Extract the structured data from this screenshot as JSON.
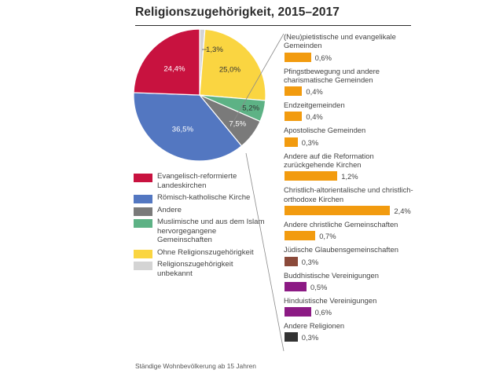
{
  "title": "Religionszugehörigkeit, 2015–2017",
  "footnote": "Ständige Wohnbevölkerung ab 15 Jahren",
  "chart_data": [
    {
      "type": "pie",
      "slices": [
        {
          "label": "Religionszugehörigkeit unbekannt",
          "value": 1.3,
          "value_label": "1,3%",
          "color": "#d4d4d4"
        },
        {
          "label": "Ohne Religionszugehörigkeit",
          "value": 25.0,
          "value_label": "25,0%",
          "color": "#fad541"
        },
        {
          "label": "Muslimische und aus dem Islam hervorgegangene Gemeinschaften",
          "value": 5.2,
          "value_label": "5,2%",
          "color": "#5db285"
        },
        {
          "label": "Andere",
          "value": 7.5,
          "value_label": "7,5%",
          "color": "#7a7a7a"
        },
        {
          "label": "Römisch-katholische Kirche",
          "value": 36.5,
          "value_label": "36,5%",
          "color": "#5377c1"
        },
        {
          "label": "Evangelisch-reformierte Landeskirchen",
          "value": 24.4,
          "value_label": "24,4%",
          "color": "#c8123f"
        }
      ],
      "legend": [
        {
          "label": "Evangelisch-reformierte Landeskirchen",
          "color": "#c8123f"
        },
        {
          "label": "Römisch-katholische Kirche",
          "color": "#5377c1"
        },
        {
          "label": "Andere",
          "color": "#7a7a7a"
        },
        {
          "label": "Muslimische und aus dem Islam hervorgegangene Gemeinschaften",
          "color": "#5db285"
        },
        {
          "label": "Ohne Religionszugehörigkeit",
          "color": "#fad541"
        },
        {
          "label": "Religionszugehörigkeit unbekannt",
          "color": "#d4d4d4"
        }
      ]
    },
    {
      "type": "bar",
      "orientation": "horizontal",
      "breakdown_of": "Andere",
      "categories": [
        "(Neu)pietistische und evangelikale Gemeinden",
        "Pfingstbewegung und andere charismatische Gemeinden",
        "Endzeitgemeinden",
        "Apostolische Gemeinden",
        "Andere auf die Reformation zurückgehende Kirchen",
        "Christlich-altorientalische und christlich-orthodoxe Kirchen",
        "Andere christliche Gemeinschaften",
        "Jüdische Glaubensgemeinschaften",
        "Buddhistische Vereinigungen",
        "Hinduistische Vereinigungen",
        "Andere Religionen"
      ],
      "values": [
        0.6,
        0.4,
        0.4,
        0.3,
        1.2,
        2.4,
        0.7,
        0.3,
        0.5,
        0.6,
        0.3
      ],
      "value_labels": [
        "0,6%",
        "0,4%",
        "0,4%",
        "0,3%",
        "1,2%",
        "2,4%",
        "0,7%",
        "0,3%",
        "0,5%",
        "0,6%",
        "0,3%"
      ],
      "colors": [
        "#f29b0f",
        "#f29b0f",
        "#f29b0f",
        "#f29b0f",
        "#f29b0f",
        "#f29b0f",
        "#f29b0f",
        "#8b4a3a",
        "#8c1a84",
        "#8c1a84",
        "#333333"
      ],
      "unit": "%"
    }
  ]
}
